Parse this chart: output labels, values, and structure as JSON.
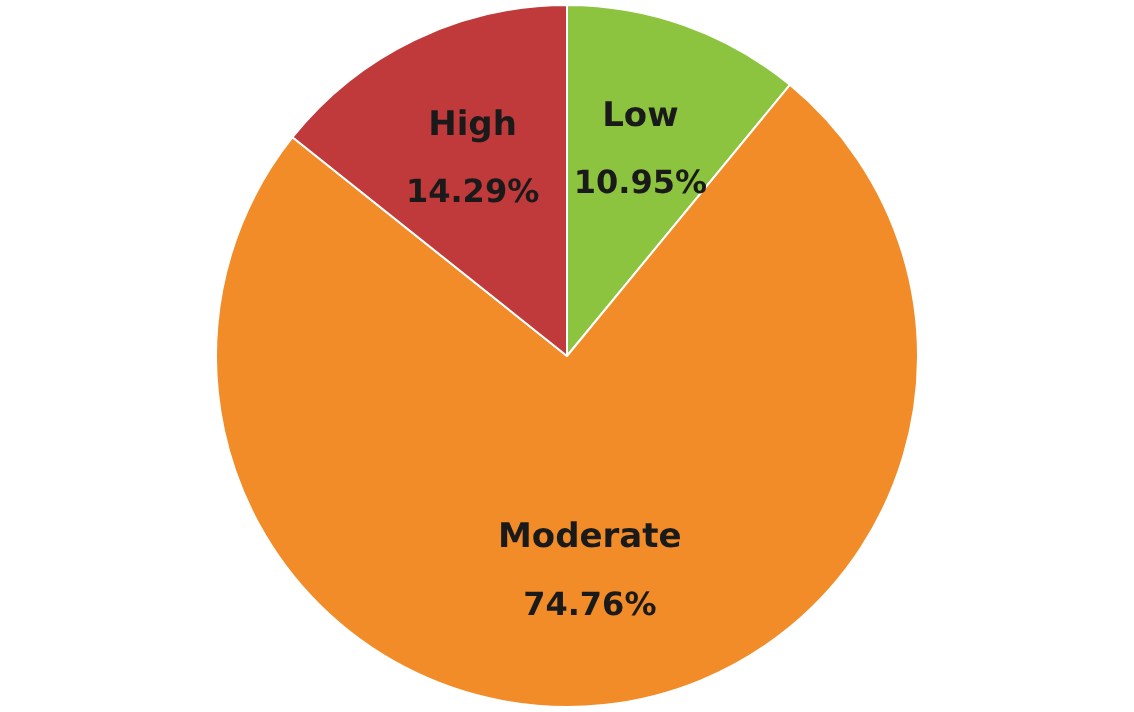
{
  "chart_data": {
    "type": "pie",
    "categories": [
      "Low",
      "Moderate",
      "High"
    ],
    "values": [
      10.95,
      74.76,
      14.29
    ],
    "colors": [
      "#8cc43f",
      "#f28c28",
      "#c0393b"
    ],
    "value_labels": [
      "10.95%",
      "74.76%",
      "14.29%"
    ],
    "legend": false
  }
}
